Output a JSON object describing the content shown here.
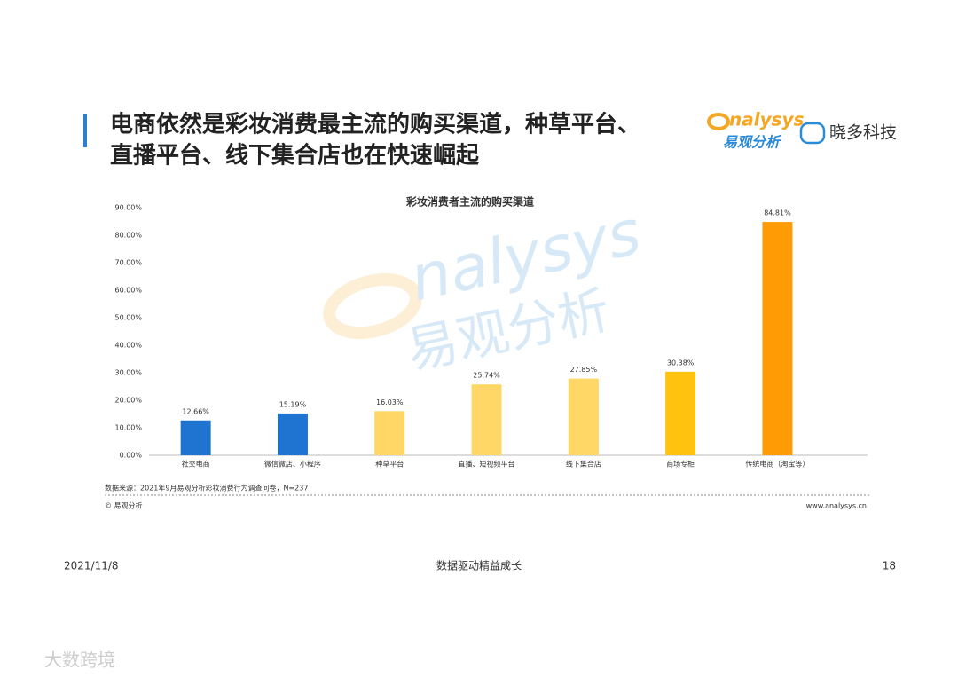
{
  "header": {
    "title_lines": [
      "电商依然是彩妆消费最主流的购买渠道，种草平台、",
      "直播平台、线下集合店也在快速崛起"
    ],
    "logo": {
      "brand": "nalysys",
      "brand_cn": "易观分析"
    },
    "partner": "晓多科技"
  },
  "chart_data": {
    "type": "bar",
    "title": "彩妆消费者主流的购买渠道",
    "categories": [
      "社交电商",
      "微信微店、小程序",
      "种草平台",
      "直播、短视频平台",
      "线下集合店",
      "商场专柜",
      "传统电商（淘宝等）"
    ],
    "values": [
      12.66,
      15.19,
      16.03,
      25.74,
      27.85,
      30.38,
      84.81
    ],
    "value_labels": [
      "12.66%",
      "15.19%",
      "16.03%",
      "25.74%",
      "27.85%",
      "30.38%",
      "84.81%"
    ],
    "colors": [
      "#1f74d1",
      "#1f74d1",
      "#ffd766",
      "#ffd766",
      "#ffd766",
      "#ffc20e",
      "#ff9b05"
    ],
    "ylim": [
      0,
      90
    ],
    "yticks": [
      {
        "value": 0,
        "label": "0.00%"
      },
      {
        "value": 10,
        "label": "10.00%"
      },
      {
        "value": 20,
        "label": "20.00%"
      },
      {
        "value": 30,
        "label": "30.00%"
      },
      {
        "value": 40,
        "label": "40.00%"
      },
      {
        "value": 50,
        "label": "50.00%"
      },
      {
        "value": 60,
        "label": "60.00%"
      },
      {
        "value": 70,
        "label": "70.00%"
      },
      {
        "value": 80,
        "label": "80.00%"
      },
      {
        "value": 90,
        "label": "90.00%"
      }
    ],
    "grid": false
  },
  "source": "数据来源：2021年9月易观分析彩妆消费行为调查问卷，N=237",
  "copyright": "© 易观分析",
  "website": "www.analysys.cn",
  "watermark": {
    "brand": "nalysys",
    "brand_cn": "易观分析"
  },
  "footer": {
    "date": "2021/11/8",
    "slogan": "数据驱动精益成长",
    "page": "18"
  },
  "corner_watermark": "大数跨境"
}
